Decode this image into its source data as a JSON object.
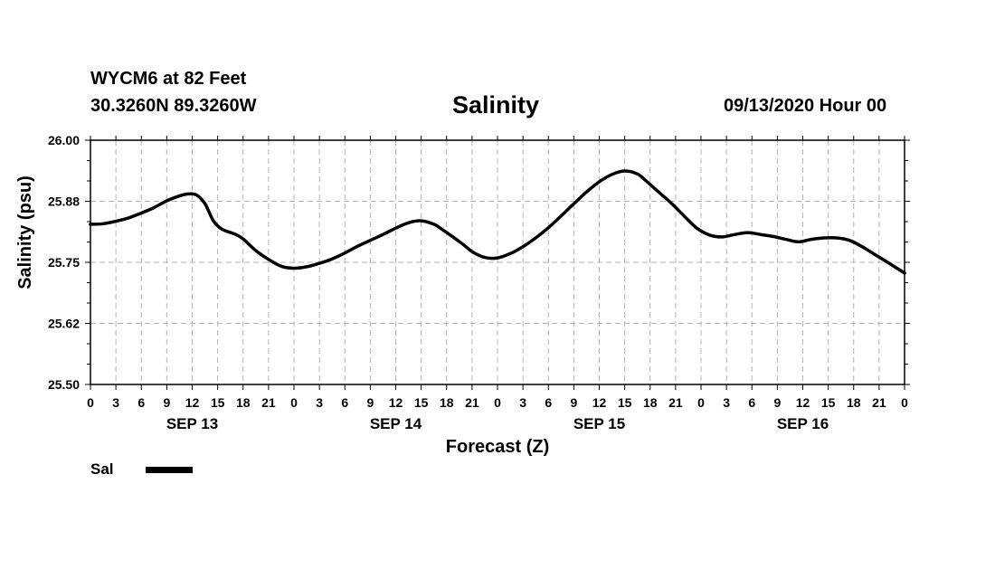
{
  "header": {
    "station": "WYCM6 at 82 Feet",
    "coords": "30.3260N 89.3260W",
    "title": "Salinity",
    "datetime": "09/13/2020 Hour 00"
  },
  "legend": {
    "label": "Sal",
    "color": "#000000"
  },
  "chart_data": {
    "type": "line",
    "title": "Salinity",
    "xlabel": "Forecast (Z)",
    "ylabel": "Salinity (psu)",
    "ylim": [
      25.5,
      26.0
    ],
    "y_ticks": [
      "25.50",
      "25.62",
      "25.75",
      "25.88",
      "26.00"
    ],
    "xlim": [
      0,
      96
    ],
    "x_tick_labels": [
      "0",
      "3",
      "6",
      "9",
      "12",
      "15",
      "18",
      "21",
      "0",
      "3",
      "6",
      "9",
      "12",
      "15",
      "18",
      "21",
      "0",
      "3",
      "6",
      "9",
      "12",
      "15",
      "18",
      "21",
      "0",
      "3",
      "6",
      "9",
      "12",
      "15",
      "18",
      "21",
      "0"
    ],
    "day_labels": [
      "SEP 13",
      "SEP 14",
      "SEP 15",
      "SEP 16"
    ],
    "grid": true,
    "legend_position": "bottom-left",
    "series": [
      {
        "name": "Sal",
        "color": "#000000",
        "x": [
          0,
          1.5,
          3,
          4.5,
          6,
          7.5,
          9,
          10.5,
          11.5,
          12.5,
          13.5,
          14.5,
          15.5,
          17,
          18,
          19.5,
          21,
          22.5,
          24,
          25.5,
          27,
          28.5,
          30,
          31.5,
          33,
          34.5,
          36,
          37.5,
          39,
          40.5,
          41.5,
          42.5,
          44,
          45,
          46.5,
          48,
          49.5,
          51,
          52.5,
          54,
          55.5,
          57,
          58.5,
          60,
          61.5,
          63,
          64.5,
          65.5,
          67,
          68.5,
          70,
          71.5,
          73,
          74.5,
          76,
          77.5,
          79,
          80.5,
          82,
          83.5,
          85,
          86.5,
          88,
          89.5,
          91,
          92.5,
          94,
          96
        ],
        "values": [
          25.828,
          25.829,
          25.834,
          25.841,
          25.851,
          25.862,
          25.876,
          25.886,
          25.89,
          25.888,
          25.87,
          25.835,
          25.818,
          25.808,
          25.798,
          25.774,
          25.756,
          25.742,
          25.738,
          25.741,
          25.748,
          25.757,
          25.769,
          25.783,
          25.795,
          25.807,
          25.82,
          25.831,
          25.835,
          25.828,
          25.817,
          25.805,
          25.786,
          25.772,
          25.76,
          25.759,
          25.768,
          25.782,
          25.8,
          25.821,
          25.845,
          25.87,
          25.894,
          25.915,
          25.93,
          25.937,
          25.931,
          25.917,
          25.894,
          25.871,
          25.845,
          25.82,
          25.806,
          25.802,
          25.807,
          25.811,
          25.807,
          25.803,
          25.797,
          25.792,
          25.797,
          25.8,
          25.8,
          25.795,
          25.782,
          25.766,
          25.75,
          25.728
        ]
      }
    ]
  }
}
